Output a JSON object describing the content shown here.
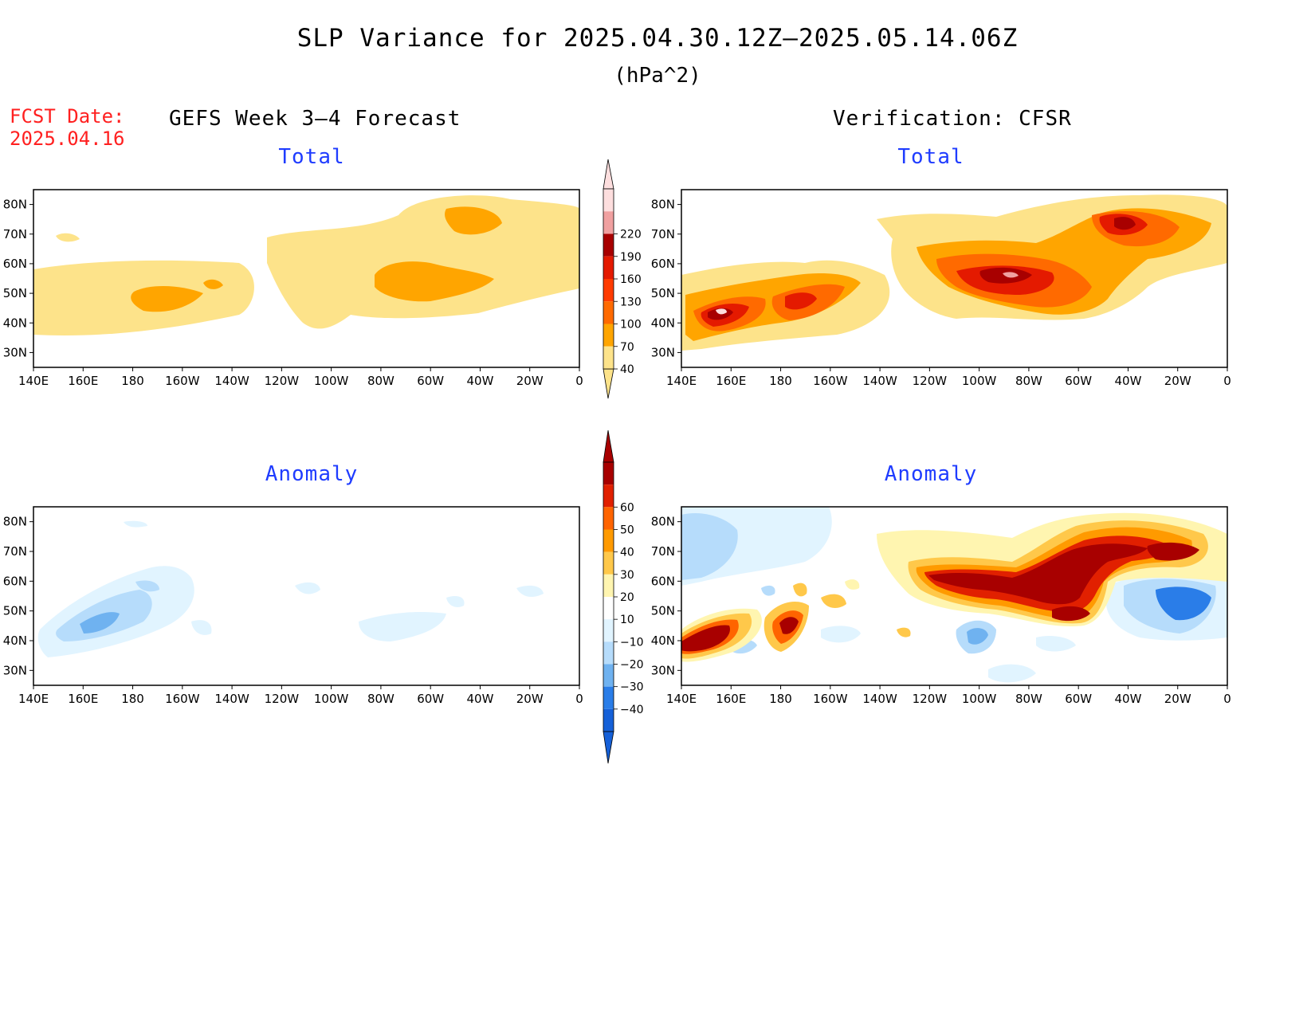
{
  "title": "SLP Variance for 2025.04.30.12Z—2025.05.14.06Z",
  "units": "(hPa^2)",
  "fcst_date_label": "FCST Date:",
  "fcst_date_value": "2025.04.16",
  "columns": {
    "left": "GEFS Week 3—4 Forecast",
    "right": "Verification: CFSR"
  },
  "panels": {
    "top_left": "Total",
    "top_right": "Total",
    "bottom_left": "Anomaly",
    "bottom_right": "Anomaly"
  },
  "lat_ticks": [
    "80N",
    "70N",
    "60N",
    "50N",
    "40N",
    "30N"
  ],
  "lon_ticks": [
    "140E",
    "160E",
    "180",
    "160W",
    "140W",
    "120W",
    "100W",
    "80W",
    "60W",
    "40W",
    "20W",
    "0"
  ],
  "total_colorbar": {
    "levels": [
      "40",
      "70",
      "100",
      "130",
      "160",
      "190",
      "220"
    ],
    "colors": [
      "#fde38a",
      "#ffa500",
      "#ff6a00",
      "#ff3b00",
      "#e41a00",
      "#a80000",
      "#f0a0a0",
      "#fddede"
    ]
  },
  "anomaly_colorbar": {
    "levels": [
      "−40",
      "−30",
      "−20",
      "−10",
      "10",
      "20",
      "30",
      "40",
      "50",
      "60"
    ],
    "colors": [
      "#1560d8",
      "#2a7de8",
      "#6fb2f0",
      "#b6dcfb",
      "#e1f4ff",
      "#ffffff",
      "#fff5b0",
      "#ffc84a",
      "#ff9a00",
      "#ff6400",
      "#e12000",
      "#a80000"
    ]
  }
}
